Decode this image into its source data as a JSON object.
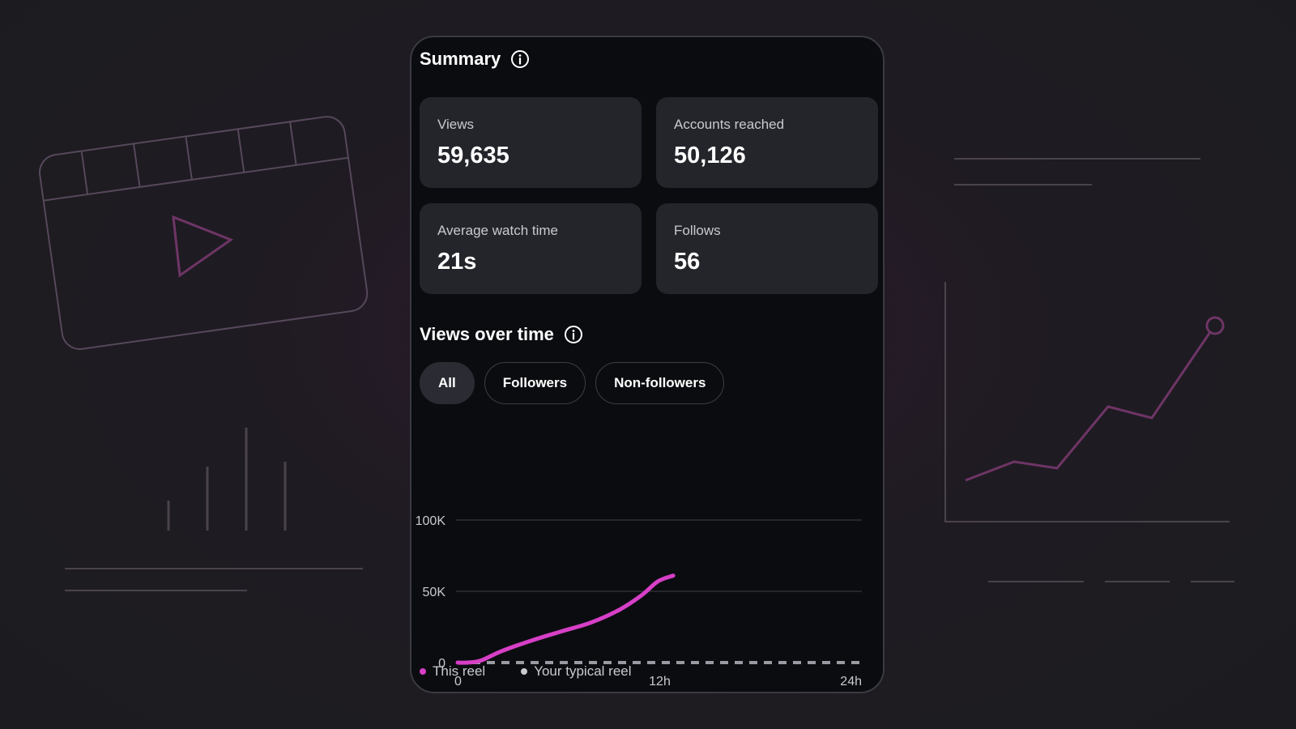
{
  "summary": {
    "title": "Summary",
    "cards": [
      {
        "label": "Views",
        "value": "59,635"
      },
      {
        "label": "Accounts reached",
        "value": "50,126"
      },
      {
        "label": "Average watch time",
        "value": "21s"
      },
      {
        "label": "Follows",
        "value": "56"
      }
    ]
  },
  "views_over_time": {
    "title": "Views over time",
    "tabs": [
      {
        "label": "All",
        "active": true
      },
      {
        "label": "Followers",
        "active": false
      },
      {
        "label": "Non-followers",
        "active": false
      }
    ]
  },
  "colors": {
    "accent": "#d63fc6",
    "typical": "#9a9aa2",
    "grid": "#2e2f36"
  },
  "icons": {
    "info": "info-circle-icon"
  },
  "chart_data": {
    "type": "line",
    "title": "",
    "xlabel": "",
    "ylabel": "",
    "x_ticks": [
      {
        "value": 0,
        "label": "0"
      },
      {
        "value": 12,
        "label": "12h"
      },
      {
        "value": 24,
        "label": "24h"
      }
    ],
    "y_ticks": [
      {
        "value": 0,
        "label": "0"
      },
      {
        "value": 50000,
        "label": "50K"
      },
      {
        "value": 100000,
        "label": "100K"
      }
    ],
    "xlim": [
      0,
      24
    ],
    "ylim": [
      0,
      100000
    ],
    "grid": true,
    "legend_position": "bottom-left",
    "series": [
      {
        "name": "This reel",
        "color": "#d63fc6",
        "style": "solid",
        "x": [
          0,
          0.6,
          1.4,
          2.6,
          4.4,
          6.2,
          7.9,
          9.6,
          10.9,
          11.9,
          12.8
        ],
        "y": [
          0,
          0,
          1500,
          8000,
          15500,
          22000,
          28000,
          37000,
          47000,
          57000,
          61000
        ]
      },
      {
        "name": "Your typical reel",
        "color": "#9a9aa2",
        "style": "dashed",
        "x": [
          0,
          6,
          12,
          18,
          24
        ],
        "y": [
          0,
          0,
          0,
          0,
          0
        ]
      }
    ]
  }
}
